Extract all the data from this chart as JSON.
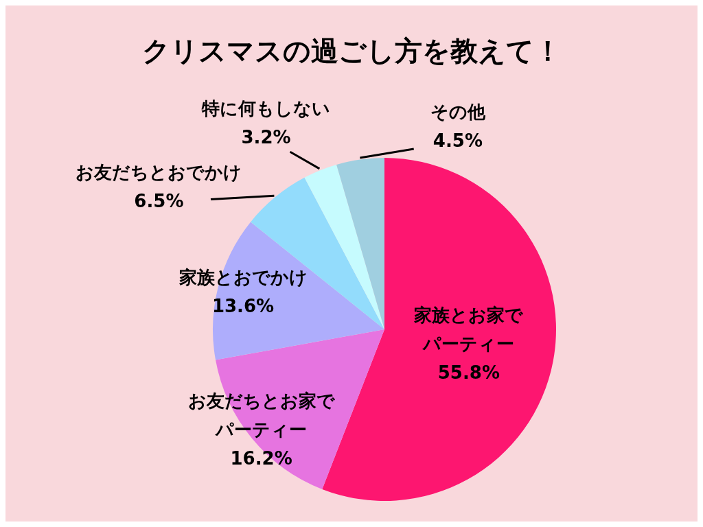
{
  "chart_data": {
    "type": "pie",
    "title": "クリスマスの過ごし方を教えて！",
    "categories": [
      "家族とお家でパーティー",
      "お友だちとお家でパーティー",
      "家族とおでかけ",
      "お友だちとおでかけ",
      "特に何もしない",
      "その他"
    ],
    "values": [
      55.8,
      16.2,
      13.6,
      6.5,
      3.2,
      4.5
    ],
    "value_labels": [
      "55.8%",
      "16.2%",
      "13.6%",
      "6.5%",
      "3.2%",
      "4.5%"
    ],
    "colors": [
      "#fd1670",
      "#e674e0",
      "#aeadfc",
      "#93dcfc",
      "#c6fbfe",
      "#a0cfe0"
    ],
    "legend": false
  }
}
